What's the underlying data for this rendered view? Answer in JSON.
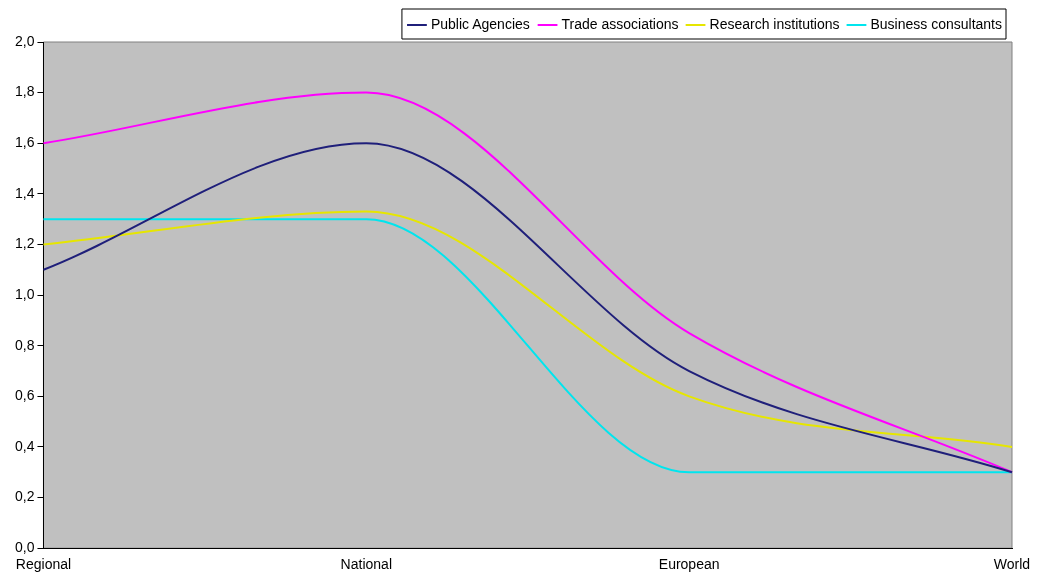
{
  "chart_data": {
    "type": "line",
    "categories": [
      "Regional",
      "National",
      "European",
      "World"
    ],
    "series": [
      {
        "name": "Public Agencies",
        "color": "#1f1f7a",
        "values": [
          1.1,
          1.6,
          0.7,
          0.3
        ]
      },
      {
        "name": "Trade associations",
        "color": "#ff00ff",
        "values": [
          1.6,
          1.8,
          0.85,
          0.3
        ]
      },
      {
        "name": "Research institutions",
        "color": "#e6e600",
        "values": [
          1.2,
          1.33,
          0.6,
          0.4
        ]
      },
      {
        "name": "Business consultants",
        "color": "#00e5ee",
        "values": [
          1.3,
          1.3,
          0.3,
          0.3
        ]
      }
    ],
    "ylim": [
      0,
      2
    ],
    "yticks": [
      {
        "value": 0,
        "label": "0,0"
      },
      {
        "value": 0.2,
        "label": "0,2"
      },
      {
        "value": 0.4,
        "label": "0,4"
      },
      {
        "value": 0.6,
        "label": "0,6"
      },
      {
        "value": 0.8,
        "label": "0,8"
      },
      {
        "value": 1,
        "label": "1,0"
      },
      {
        "value": 1.2,
        "label": "1,2"
      },
      {
        "value": 1.4,
        "label": "1,4"
      },
      {
        "value": 1.6,
        "label": "1,6"
      },
      {
        "value": 1.8,
        "label": "1,8"
      },
      {
        "value": 2,
        "label": "2,0"
      }
    ],
    "grid": false,
    "legend": "top right",
    "marker": "none",
    "line_style": "solid"
  }
}
